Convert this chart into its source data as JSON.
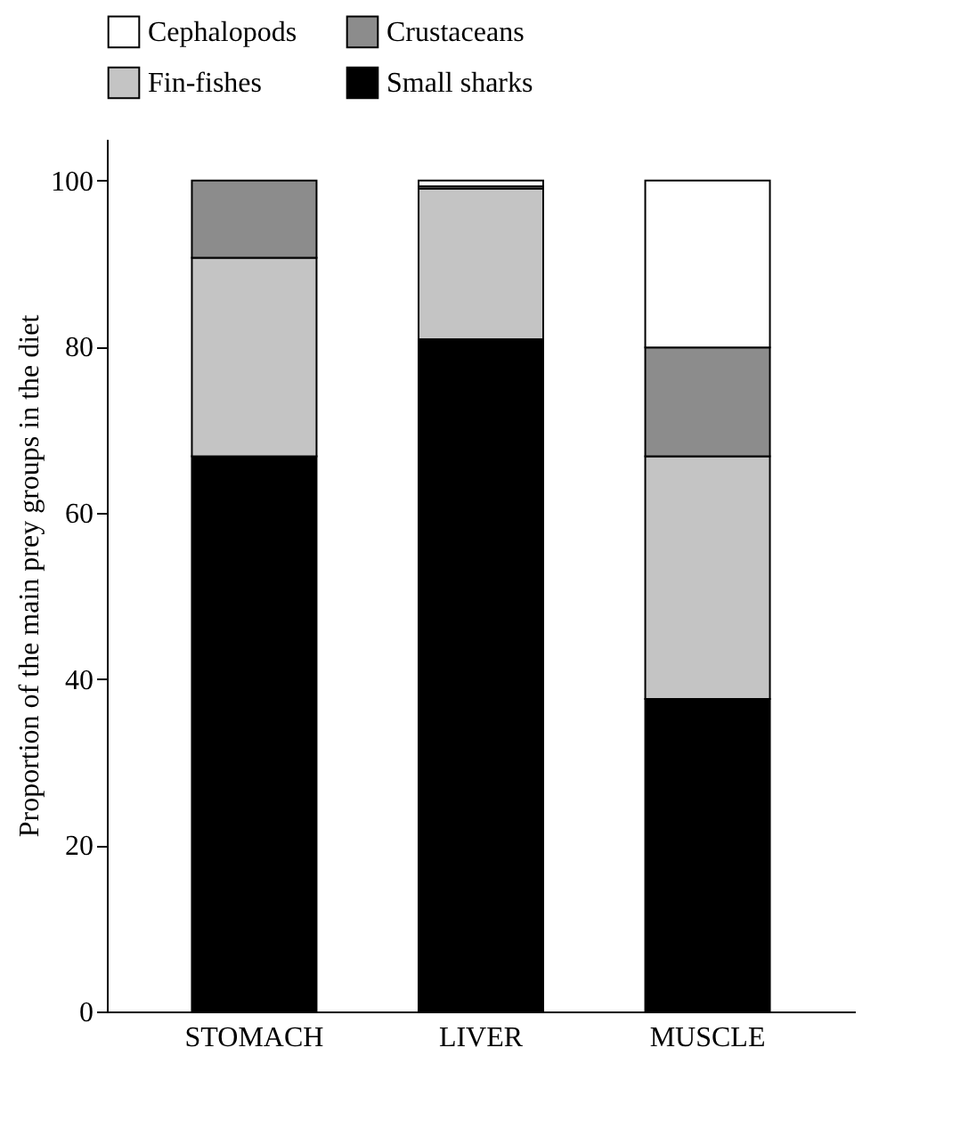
{
  "chart_data": {
    "type": "bar",
    "stacked": true,
    "ylabel": "Proportion of the main prey groups in the diet",
    "categories": [
      "STOMACH",
      "LIVER",
      "MUSCLE"
    ],
    "series": [
      {
        "name": "Small sharks",
        "color": "#000000",
        "values": [
          66.8,
          80.9,
          37.6
        ]
      },
      {
        "name": "Fin-fishes",
        "color": "#c4c4c4",
        "values": [
          23.9,
          18.1,
          29.2
        ]
      },
      {
        "name": "Crustaceans",
        "color": "#8c8c8c",
        "values": [
          9.3,
          0.3,
          13.1
        ]
      },
      {
        "name": "Cephalopods",
        "color": "#ffffff",
        "values": [
          null,
          0.7,
          20.1
        ]
      }
    ],
    "ylim": [
      0,
      105
    ],
    "yticks": [
      0,
      20,
      40,
      60,
      80,
      100
    ],
    "legend": "top",
    "grid": false
  }
}
